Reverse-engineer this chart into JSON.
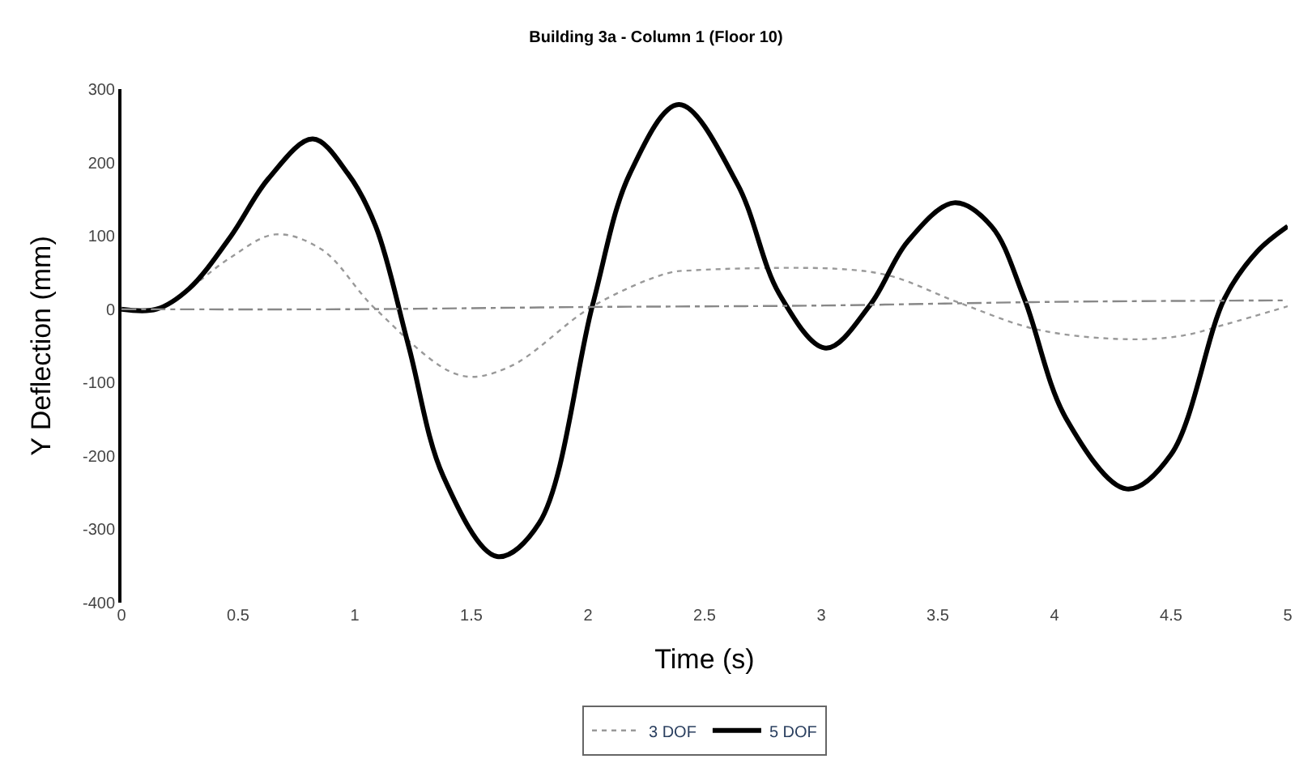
{
  "chart_data": {
    "type": "line",
    "title": "Building 3a - Column 1 (Floor 10)",
    "xlabel": "Time (s)",
    "ylabel": "Y Deflection (mm)",
    "xlim": [
      0,
      5
    ],
    "xticks": [
      0,
      0.5,
      1,
      1.5,
      2,
      2.5,
      3,
      3.5,
      4,
      4.5,
      5
    ],
    "ylim": [
      -400,
      300
    ],
    "yticks": [
      -400,
      -300,
      -200,
      -100,
      0,
      100,
      200,
      300
    ],
    "legend": "bottom",
    "marker": "none",
    "series": [
      {
        "name": "3 DOF",
        "color": "#999999",
        "line_style": "dotted",
        "x": [
          0,
          0.15,
          0.29,
          0.47,
          0.66,
          0.86,
          1.09,
          1.45,
          1.66,
          2.02,
          2.34,
          2.45,
          3.07,
          3.3,
          3.59,
          3.93,
          4.32,
          4.55,
          4.73,
          5
        ],
        "values": [
          0,
          0,
          28,
          71,
          102,
          81,
          0,
          -90,
          -79,
          4,
          49,
          53,
          55,
          45,
          9,
          -28,
          -41,
          -36,
          -21,
          4
        ]
      },
      {
        "name": "5 DOF",
        "color": "#000000",
        "line_style": "solid",
        "x": [
          0,
          0.15,
          0.29,
          0.47,
          0.63,
          0.82,
          0.97,
          1.09,
          1.23,
          1.38,
          1.61,
          1.79,
          2.02,
          2.18,
          2.39,
          2.64,
          2.82,
          3.02,
          3.21,
          3.37,
          3.57,
          3.73,
          3.87,
          4.05,
          4.31,
          4.5,
          4.73,
          4.87,
          5
        ],
        "values": [
          0,
          0,
          28,
          100,
          178,
          232,
          185,
          113,
          -49,
          -228,
          -337,
          -292,
          6,
          185,
          279,
          171,
          21,
          -53,
          6,
          92,
          145,
          113,
          15,
          -149,
          -245,
          -198,
          15,
          79,
          113
        ]
      },
      {
        "color": "#888888",
        "line_style": "dashed",
        "x": [
          0,
          1,
          2,
          3,
          4,
          5
        ],
        "values": [
          0,
          0,
          3,
          5,
          10,
          12
        ]
      }
    ]
  }
}
